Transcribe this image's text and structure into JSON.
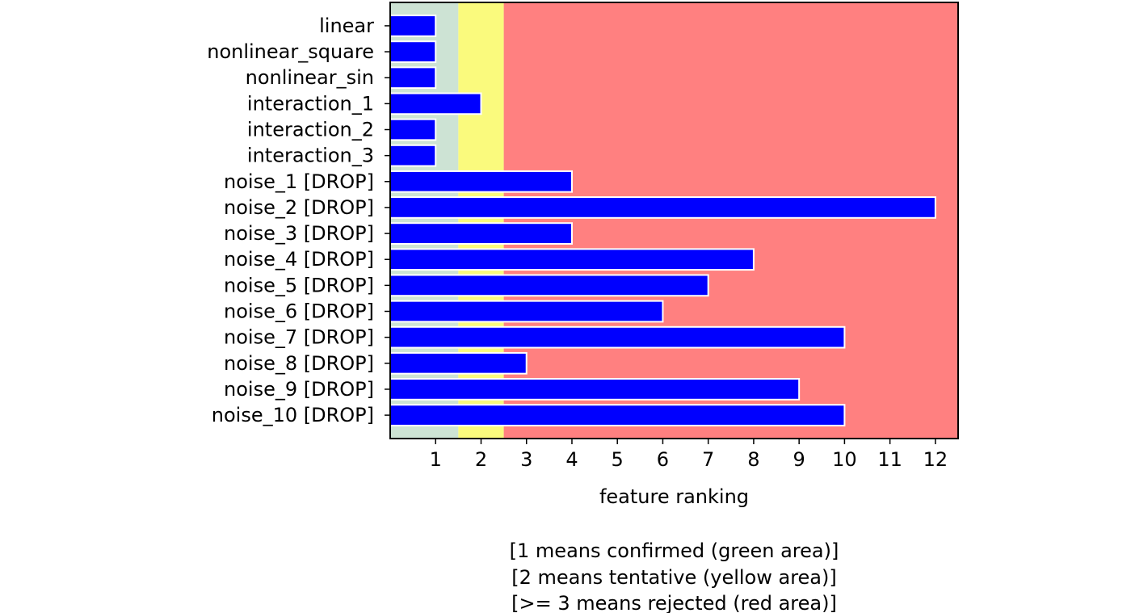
{
  "chart_data": {
    "type": "bar",
    "orientation": "horizontal",
    "categories": [
      "linear",
      "nonlinear_square",
      "nonlinear_sin",
      "interaction_1",
      "interaction_2",
      "interaction_3",
      "noise_1 [DROP]",
      "noise_2 [DROP]",
      "noise_3 [DROP]",
      "noise_4 [DROP]",
      "noise_5 [DROP]",
      "noise_6 [DROP]",
      "noise_7 [DROP]",
      "noise_8 [DROP]",
      "noise_9 [DROP]",
      "noise_10 [DROP]"
    ],
    "values": [
      1,
      1,
      1,
      2,
      1,
      1,
      4,
      12,
      4,
      8,
      7,
      6,
      10,
      3,
      9,
      10
    ],
    "xlabel": "feature ranking",
    "xticks": [
      "1",
      "2",
      "3",
      "4",
      "5",
      "6",
      "7",
      "8",
      "9",
      "10",
      "11",
      "12"
    ],
    "xlim": [
      0,
      12.5
    ],
    "caption": [
      "[1 means confirmed (green area)]",
      "[2 means tentative (yellow area)]",
      "[>= 3 means rejected (red area)]"
    ],
    "regions": [
      {
        "name": "confirmed",
        "from": 0,
        "to": 1.5,
        "color": "#cde3d4"
      },
      {
        "name": "tentative",
        "from": 1.5,
        "to": 2.5,
        "color": "#fafa7d"
      },
      {
        "name": "rejected",
        "from": 2.5,
        "to": 12.5,
        "color": "#ff8080"
      }
    ],
    "bar_color": "#0000ff",
    "bar_edge_color": "#ffffff",
    "grid": false
  }
}
